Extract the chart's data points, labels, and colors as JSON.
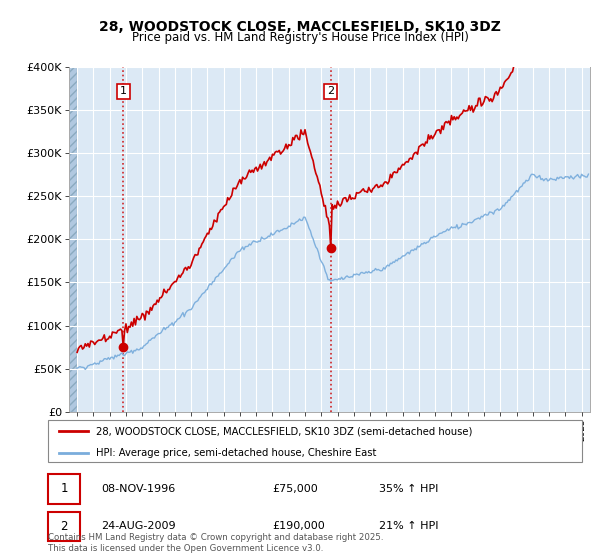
{
  "title1": "28, WOODSTOCK CLOSE, MACCLESFIELD, SK10 3DZ",
  "title2": "Price paid vs. HM Land Registry's House Price Index (HPI)",
  "legend_line1": "28, WOODSTOCK CLOSE, MACCLESFIELD, SK10 3DZ (semi-detached house)",
  "legend_line2": "HPI: Average price, semi-detached house, Cheshire East",
  "annotation1_date": "08-NOV-1996",
  "annotation1_price": "£75,000",
  "annotation1_hpi": "35% ↑ HPI",
  "annotation2_date": "24-AUG-2009",
  "annotation2_price": "£190,000",
  "annotation2_hpi": "21% ↑ HPI",
  "footer": "Contains HM Land Registry data © Crown copyright and database right 2025.\nThis data is licensed under the Open Government Licence v3.0.",
  "price_color": "#cc0000",
  "hpi_color": "#7aaddc",
  "vline_color": "#cc0000",
  "sale1_year": 1996.83,
  "sale1_price": 75000,
  "sale2_year": 2009.58,
  "sale2_price": 190000,
  "ylim_max": 400000,
  "ylim_min": 0,
  "xlim_min": 1993.5,
  "xlim_max": 2025.5,
  "background_color": "#ffffff",
  "plot_bg_color": "#dce9f5",
  "hatch_end_year": 1994.0
}
